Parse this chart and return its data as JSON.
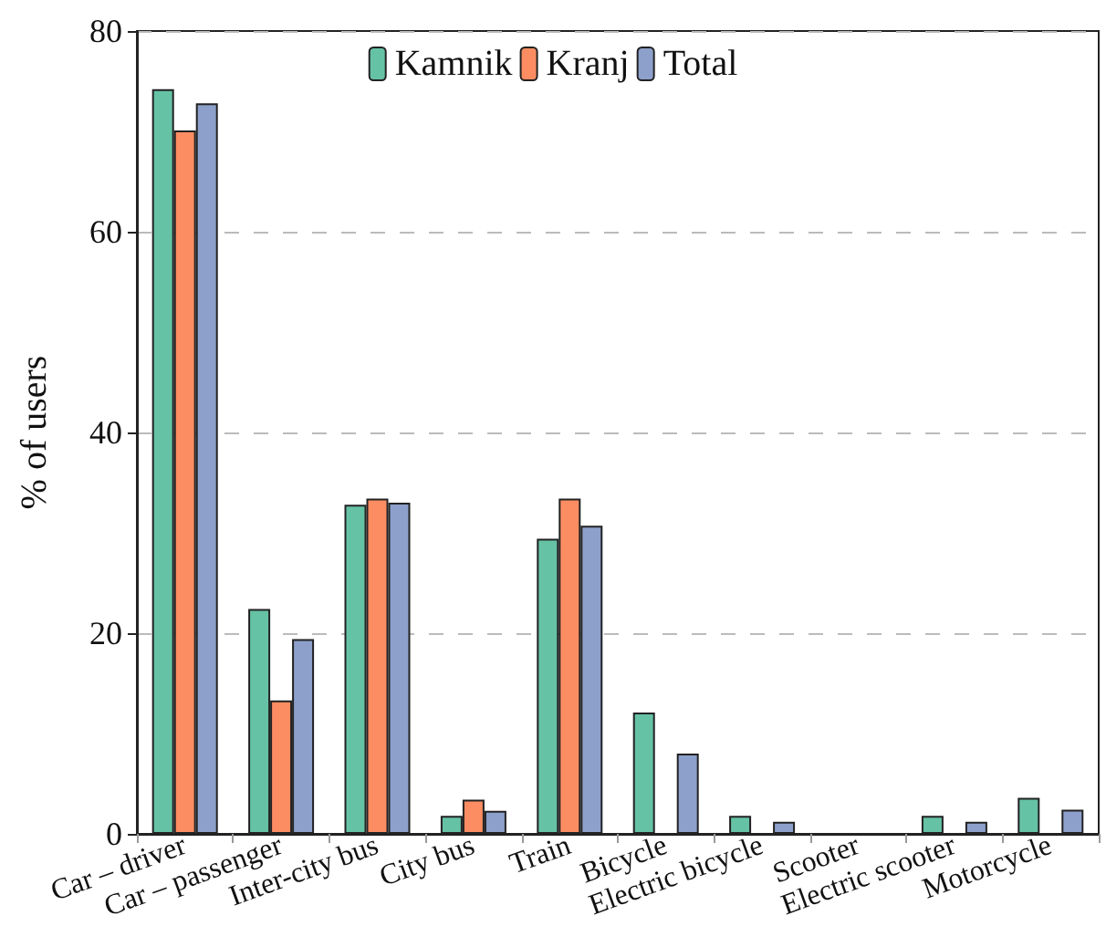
{
  "chart_data": {
    "type": "bar",
    "ylabel": "% of users",
    "categories": [
      "Car – driver",
      "Car – passenger",
      "Inter-city bus",
      "City bus",
      "Train",
      "Bicycle",
      "Electric bicycle",
      "Scooter",
      "Electric scooter",
      "Motorcycle"
    ],
    "series": [
      {
        "name": "Kamnik",
        "color": "#66c2a5",
        "values": [
          74.2,
          22.4,
          32.8,
          1.8,
          29.4,
          12.1,
          1.8,
          0,
          1.8,
          3.6
        ]
      },
      {
        "name": "Kranj",
        "color": "#fc8d62",
        "values": [
          70.1,
          13.3,
          33.4,
          3.4,
          33.4,
          0,
          0,
          0,
          0,
          0
        ]
      },
      {
        "name": "Total",
        "color": "#8da0cb",
        "values": [
          72.8,
          19.4,
          33.0,
          2.3,
          30.7,
          8.0,
          1.2,
          0,
          1.2,
          2.4
        ]
      }
    ],
    "ylim": [
      0,
      80
    ],
    "yticks": [
      0,
      20,
      40,
      60,
      80
    ],
    "grid": "y",
    "legend": "top"
  }
}
